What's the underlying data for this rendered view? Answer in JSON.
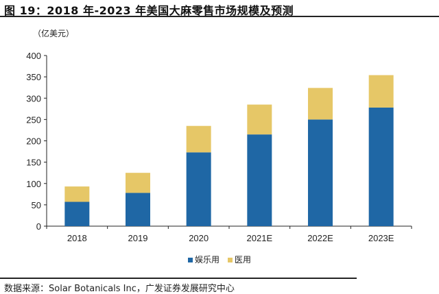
{
  "title": "图 19：2018 年-2023 年美国大麻零售市场规模及预测",
  "source": "数据来源：Solar Botanicals Inc，广发证券发展研究中心",
  "chart_data": {
    "type": "bar",
    "stacked": true,
    "ylabel": "（亿美元）",
    "ylim": [
      0,
      400
    ],
    "yticks": [
      0,
      50,
      100,
      150,
      200,
      250,
      300,
      350,
      400
    ],
    "categories": [
      "2018",
      "2019",
      "2020",
      "2021E",
      "2022E",
      "2023E"
    ],
    "series": [
      {
        "name": "娱乐用",
        "color": "#1f67a5",
        "values": [
          57,
          78,
          173,
          215,
          250,
          278
        ]
      },
      {
        "name": "医用",
        "color": "#e6c767",
        "values": [
          36,
          47,
          62,
          70,
          74,
          76
        ]
      }
    ],
    "grid": false,
    "legend": "bottom"
  }
}
